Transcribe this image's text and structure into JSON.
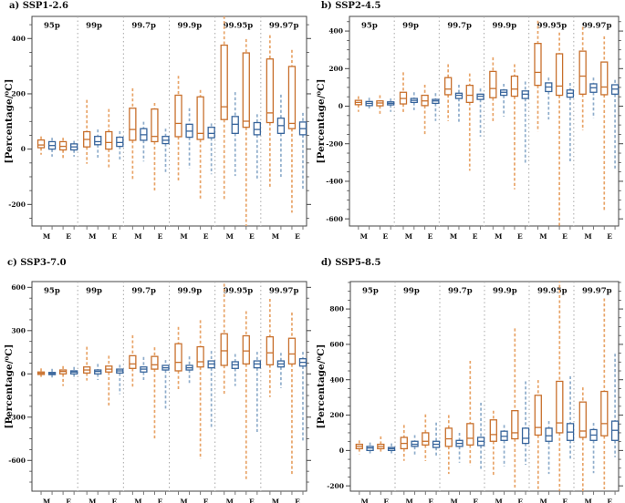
{
  "colors": {
    "orange_box": "#c8702d",
    "orange_whisker": "#e8a468",
    "blue_box": "#38659c",
    "blue_whisker": "#8fadcb",
    "axis": "#444444",
    "separator": "#a8a8a8",
    "tick_minor": "#555555",
    "background": "#ffffff",
    "text": "#111111"
  },
  "chart_data": [
    {
      "type": "boxplot",
      "panel": "a",
      "title": "a) SSP1-2.6",
      "ylabel": "[Percentage/⁰C]",
      "ylim": [
        -278,
        480
      ],
      "yticks": [
        -200,
        0,
        200,
        400
      ],
      "minor_tick_step": 50,
      "groups": [
        "95p",
        "99p",
        "99.7p",
        "99.9p",
        "99.95p",
        "99.97p"
      ],
      "x_labels": [
        "M",
        "E"
      ],
      "box_order": [
        "M-orange",
        "M-blue",
        "E-orange",
        "E-blue"
      ],
      "box_values": [
        "whisker_low",
        "q1",
        "median",
        "q3",
        "whisker_high"
      ],
      "boxes": [
        [
          [
            -20,
            5,
            15,
            33,
            46
          ],
          [
            -27,
            0,
            13,
            27,
            41
          ],
          [
            -33,
            -3,
            10,
            27,
            41
          ],
          [
            -27,
            -3,
            8,
            19,
            30
          ]
        ],
        [
          [
            -53,
            8,
            35,
            63,
            178
          ],
          [
            -31,
            16,
            27,
            46,
            71
          ],
          [
            -69,
            0,
            24,
            63,
            145
          ],
          [
            -42,
            10,
            24,
            43,
            65
          ]
        ],
        [
          [
            -108,
            32,
            71,
            148,
            220
          ],
          [
            -45,
            32,
            52,
            74,
            99
          ],
          [
            -152,
            27,
            46,
            145,
            167
          ],
          [
            -85,
            20,
            32,
            46,
            74
          ]
        ],
        [
          [
            -120,
            45,
            93,
            195,
            265
          ],
          [
            -69,
            43,
            65,
            90,
            148
          ],
          [
            -185,
            35,
            57,
            189,
            214
          ],
          [
            -91,
            41,
            57,
            79,
            93
          ]
        ],
        [
          [
            -185,
            107,
            153,
            376,
            500
          ],
          [
            -97,
            57,
            90,
            118,
            206
          ],
          [
            -290,
            79,
            101,
            348,
            398
          ],
          [
            -113,
            52,
            71,
            96,
            126
          ]
        ],
        [
          [
            -141,
            96,
            131,
            326,
            412
          ],
          [
            -100,
            57,
            85,
            112,
            197
          ],
          [
            -230,
            74,
            93,
            299,
            359
          ],
          [
            -148,
            52,
            74,
            98,
            131
          ]
        ]
      ]
    },
    {
      "type": "boxplot",
      "panel": "b",
      "title": "b) SSP2-4.5",
      "ylabel": "[Percentage/⁰C]",
      "ylim": [
        -638,
        478
      ],
      "yticks": [
        -600,
        -400,
        -200,
        0,
        200,
        400
      ],
      "minor_tick_step": 50,
      "groups": [
        "95p",
        "99p",
        "99.7p",
        "99.9p",
        "99.95p",
        "99.97p"
      ],
      "x_labels": [
        "M",
        "E"
      ],
      "box_order": [
        "M-orange",
        "M-blue",
        "E-orange",
        "E-blue"
      ],
      "box_values": [
        "whisker_low",
        "q1",
        "median",
        "q3",
        "whisker_high"
      ],
      "boxes": [
        [
          [
            -30,
            8,
            20,
            31,
            53
          ],
          [
            -21,
            3,
            15,
            25,
            45
          ],
          [
            -41,
            2,
            17,
            28,
            58
          ],
          [
            -30,
            7,
            15,
            23,
            41
          ]
        ],
        [
          [
            -38,
            12,
            41,
            74,
            180
          ],
          [
            -21,
            20,
            31,
            41,
            74
          ],
          [
            -150,
            3,
            28,
            58,
            114
          ],
          [
            -79,
            15,
            28,
            36,
            69
          ]
        ],
        [
          [
            -79,
            61,
            91,
            152,
            223
          ],
          [
            -88,
            41,
            58,
            69,
            114
          ],
          [
            -344,
            20,
            58,
            111,
            174
          ],
          [
            -162,
            36,
            53,
            64,
            94
          ]
        ],
        [
          [
            -88,
            45,
            94,
            185,
            260
          ],
          [
            -55,
            58,
            74,
            86,
            119
          ],
          [
            -443,
            53,
            91,
            160,
            223
          ],
          [
            -311,
            41,
            64,
            81,
            131
          ]
        ],
        [
          [
            -134,
            111,
            180,
            334,
            455
          ],
          [
            -71,
            78,
            102,
            124,
            152
          ],
          [
            -660,
            58,
            107,
            279,
            392
          ],
          [
            -303,
            48,
            69,
            86,
            124
          ]
        ],
        [
          [
            -129,
            64,
            160,
            293,
            422
          ],
          [
            -63,
            74,
            98,
            119,
            152
          ],
          [
            -559,
            61,
            102,
            235,
            372
          ],
          [
            -336,
            64,
            91,
            114,
            140
          ]
        ]
      ]
    },
    {
      "type": "boxplot",
      "panel": "c",
      "title": "c) SSP3-7.0",
      "ylabel": "[Percentage/⁰C]",
      "ylim": [
        -813,
        640
      ],
      "yticks": [
        -600,
        -300,
        0,
        300,
        600
      ],
      "minor_tick_step": 75,
      "groups": [
        "95p",
        "99p",
        "99.7p",
        "99.9p",
        "99.95p",
        "99.97p"
      ],
      "x_labels": [
        "M",
        "E"
      ],
      "box_order": [
        "M-orange",
        "M-blue",
        "E-orange",
        "E-blue"
      ],
      "box_values": [
        "whisker_low",
        "q1",
        "median",
        "q3",
        "whisker_high"
      ],
      "boxes": [
        [
          [
            -21,
            -4,
            4,
            13,
            38
          ],
          [
            -25,
            -5,
            3,
            10,
            35
          ],
          [
            -84,
            0,
            17,
            27,
            54
          ],
          [
            -36,
            0,
            13,
            21,
            48
          ]
        ],
        [
          [
            -46,
            6,
            27,
            48,
            188
          ],
          [
            -42,
            0,
            17,
            27,
            69
          ],
          [
            -230,
            13,
            33,
            54,
            126
          ],
          [
            -140,
            6,
            21,
            33,
            63
          ]
        ],
        [
          [
            -92,
            38,
            69,
            126,
            268
          ],
          [
            -50,
            13,
            33,
            48,
            117
          ],
          [
            -454,
            33,
            63,
            121,
            184
          ],
          [
            -251,
            27,
            42,
            59,
            96
          ]
        ],
        [
          [
            -113,
            21,
            80,
            209,
            326
          ],
          [
            -63,
            27,
            42,
            59,
            121
          ],
          [
            -590,
            48,
            84,
            188,
            372
          ],
          [
            -370,
            42,
            69,
            90,
            159
          ]
        ],
        [
          [
            -151,
            59,
            160,
            278,
            660
          ],
          [
            -84,
            38,
            63,
            84,
            138
          ],
          [
            -730,
            69,
            159,
            264,
            435
          ],
          [
            -402,
            42,
            69,
            90,
            153
          ]
        ],
        [
          [
            -161,
            63,
            146,
            257,
            520
          ],
          [
            -98,
            48,
            69,
            90,
            146
          ],
          [
            -700,
            69,
            138,
            247,
            425
          ],
          [
            -465,
            54,
            80,
            105,
            153
          ]
        ]
      ]
    },
    {
      "type": "boxplot",
      "panel": "d",
      "title": "d) SSP5-8.5",
      "ylabel": "[Percentage/⁰C]",
      "ylim": [
        -230,
        955
      ],
      "yticks": [
        -200,
        0,
        200,
        400,
        600,
        800
      ],
      "minor_tick_step": 50,
      "groups": [
        "95p",
        "99p",
        "99.7p",
        "99.9p",
        "99.95p",
        "99.97p"
      ],
      "x_labels": [
        "M",
        "E"
      ],
      "box_order": [
        "M-orange",
        "M-blue",
        "E-orange",
        "E-blue"
      ],
      "box_values": [
        "whisker_low",
        "q1",
        "median",
        "q3",
        "whisker_high"
      ],
      "boxes": [
        [
          [
            -21,
            10,
            23,
            35,
            57
          ],
          [
            -24,
            0,
            14,
            23,
            45
          ],
          [
            -15,
            10,
            22,
            35,
            80
          ],
          [
            -21,
            0,
            10,
            17,
            40
          ]
        ],
        [
          [
            -59,
            10,
            40,
            74,
            144
          ],
          [
            -29,
            23,
            35,
            52,
            87
          ],
          [
            -60,
            31,
            52,
            100,
            204
          ],
          [
            -38,
            17,
            35,
            52,
            158
          ]
        ],
        [
          [
            -133,
            23,
            66,
            126,
            200
          ],
          [
            -69,
            23,
            40,
            57,
            100
          ],
          [
            -85,
            31,
            69,
            152,
            507
          ],
          [
            -107,
            28,
            52,
            74,
            270
          ]
        ],
        [
          [
            -139,
            52,
            90,
            173,
            225
          ],
          [
            -90,
            57,
            80,
            109,
            144
          ],
          [
            -210,
            66,
            100,
            225,
            690
          ],
          [
            -81,
            40,
            69,
            126,
            391
          ]
        ],
        [
          [
            -245,
            87,
            130,
            312,
            398
          ],
          [
            -133,
            52,
            83,
            126,
            166
          ],
          [
            -229,
            100,
            156,
            391,
            965
          ],
          [
            -52,
            57,
            104,
            152,
            420
          ]
        ],
        [
          [
            -245,
            74,
            110,
            274,
            357
          ],
          [
            -128,
            57,
            87,
            118,
            156
          ],
          [
            -220,
            83,
            152,
            334,
            860
          ],
          [
            -38,
            57,
            114,
            166,
            547
          ]
        ]
      ]
    }
  ]
}
